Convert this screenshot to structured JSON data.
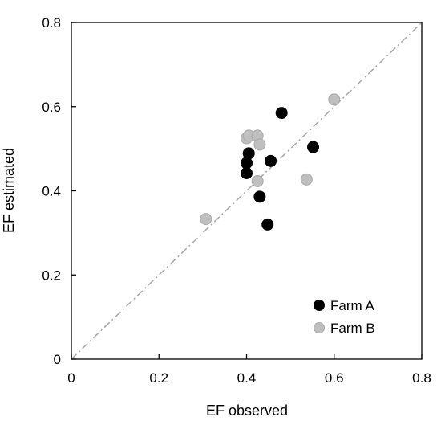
{
  "chart_data": {
    "type": "scatter",
    "xlabel": "EF observed",
    "ylabel": "EF estimated",
    "xlim": [
      0,
      0.8
    ],
    "ylim": [
      0,
      0.8
    ],
    "xticks": [
      "0",
      "0.2",
      "0.4",
      "0.6",
      "0.8"
    ],
    "yticks": [
      "0",
      "0.2",
      "0.4",
      "0.6",
      "0.8"
    ],
    "grid": false,
    "legend_position": "bottom-right",
    "reference_line": {
      "style": "dash-dot",
      "from": [
        0,
        0
      ],
      "to": [
        0.8,
        0.8
      ],
      "color": "#a6a6a6"
    },
    "series": [
      {
        "name": "Farm A",
        "color": "#000000",
        "points": [
          {
            "x": 0.4,
            "y": 0.442
          },
          {
            "x": 0.4,
            "y": 0.466
          },
          {
            "x": 0.405,
            "y": 0.489
          },
          {
            "x": 0.43,
            "y": 0.386
          },
          {
            "x": 0.448,
            "y": 0.32
          },
          {
            "x": 0.455,
            "y": 0.471
          },
          {
            "x": 0.48,
            "y": 0.585
          },
          {
            "x": 0.552,
            "y": 0.504
          }
        ]
      },
      {
        "name": "Farm B",
        "color": "#bfbfbf",
        "points": [
          {
            "x": 0.307,
            "y": 0.333
          },
          {
            "x": 0.4,
            "y": 0.525
          },
          {
            "x": 0.405,
            "y": 0.531
          },
          {
            "x": 0.425,
            "y": 0.531
          },
          {
            "x": 0.425,
            "y": 0.423
          },
          {
            "x": 0.43,
            "y": 0.51
          },
          {
            "x": 0.537,
            "y": 0.427
          },
          {
            "x": 0.6,
            "y": 0.617
          }
        ]
      }
    ]
  }
}
